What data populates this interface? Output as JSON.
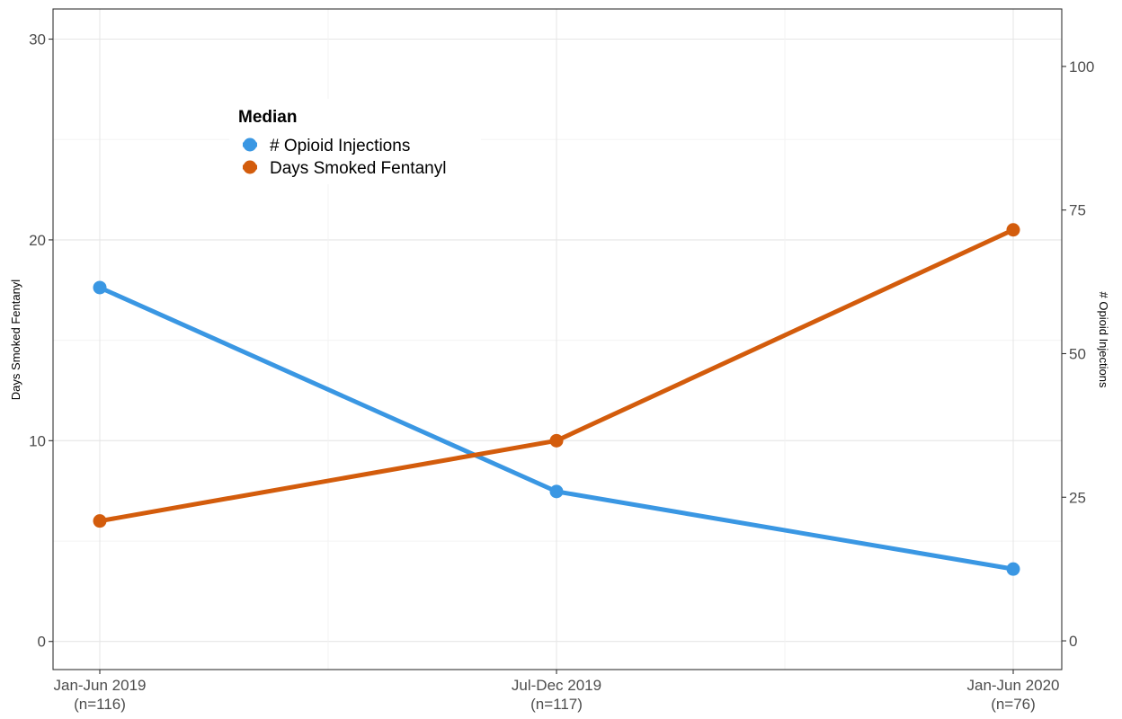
{
  "chart_data": {
    "type": "line",
    "categories": [
      "Jan-Jun 2019\n(n=116)",
      "Jul-Dec 2019\n(n=117)",
      "Jan-Jun 2020\n(n=76)"
    ],
    "series": [
      {
        "name": "# Opioid Injections",
        "axis": "right",
        "color": "#3a97e3",
        "values": [
          61.5,
          26,
          12.5
        ]
      },
      {
        "name": "Days Smoked Fentanyl",
        "axis": "left",
        "color": "#d35c0c",
        "values": [
          6,
          10,
          20.5
        ]
      }
    ],
    "left_axis": {
      "label": "Days Smoked Fentanyl",
      "ticks": [
        0,
        10,
        20,
        30
      ],
      "range": [
        -1.4,
        31.5
      ]
    },
    "right_axis": {
      "label": "# Opioid Injections",
      "ticks": [
        0,
        25,
        50,
        75,
        100
      ],
      "range": [
        -5,
        110
      ]
    },
    "legend": {
      "title": "Median",
      "placement": "top-left",
      "entries": [
        "# Opioid Injections",
        "Days Smoked Fentanyl"
      ]
    },
    "grid": true
  }
}
